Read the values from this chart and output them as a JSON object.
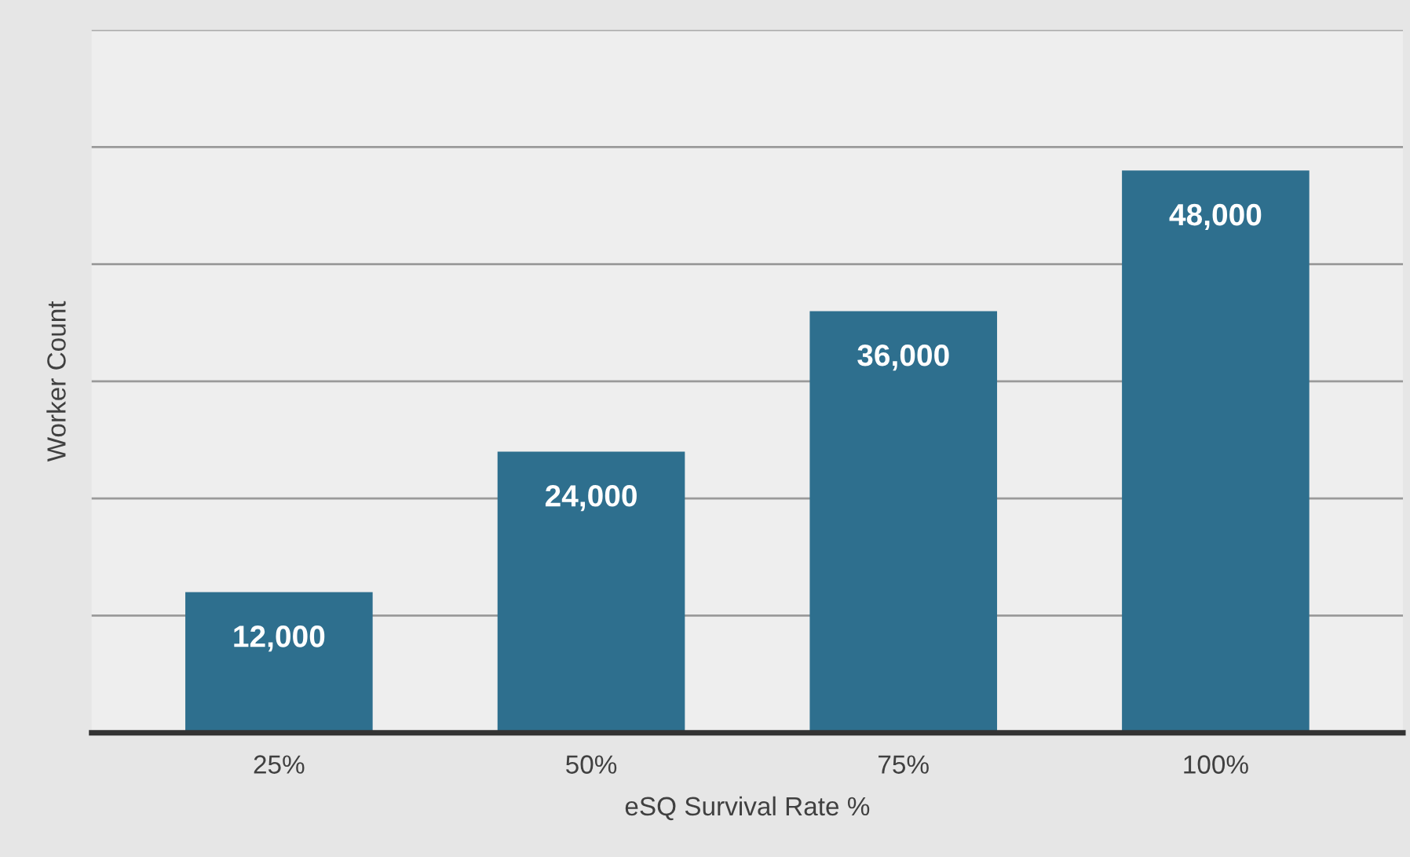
{
  "chart_data": {
    "type": "bar",
    "xlabel": "eSQ Survival Rate %",
    "ylabel": "Worker Count",
    "categories": [
      "25%",
      "50%",
      "75%",
      "100%"
    ],
    "values": [
      12000,
      24000,
      36000,
      48000
    ],
    "value_labels": [
      "12,000",
      "24,000",
      "36,000",
      "48,000"
    ],
    "color": "#2e6f8e",
    "tick_labels": "x",
    "grid": "y"
  }
}
